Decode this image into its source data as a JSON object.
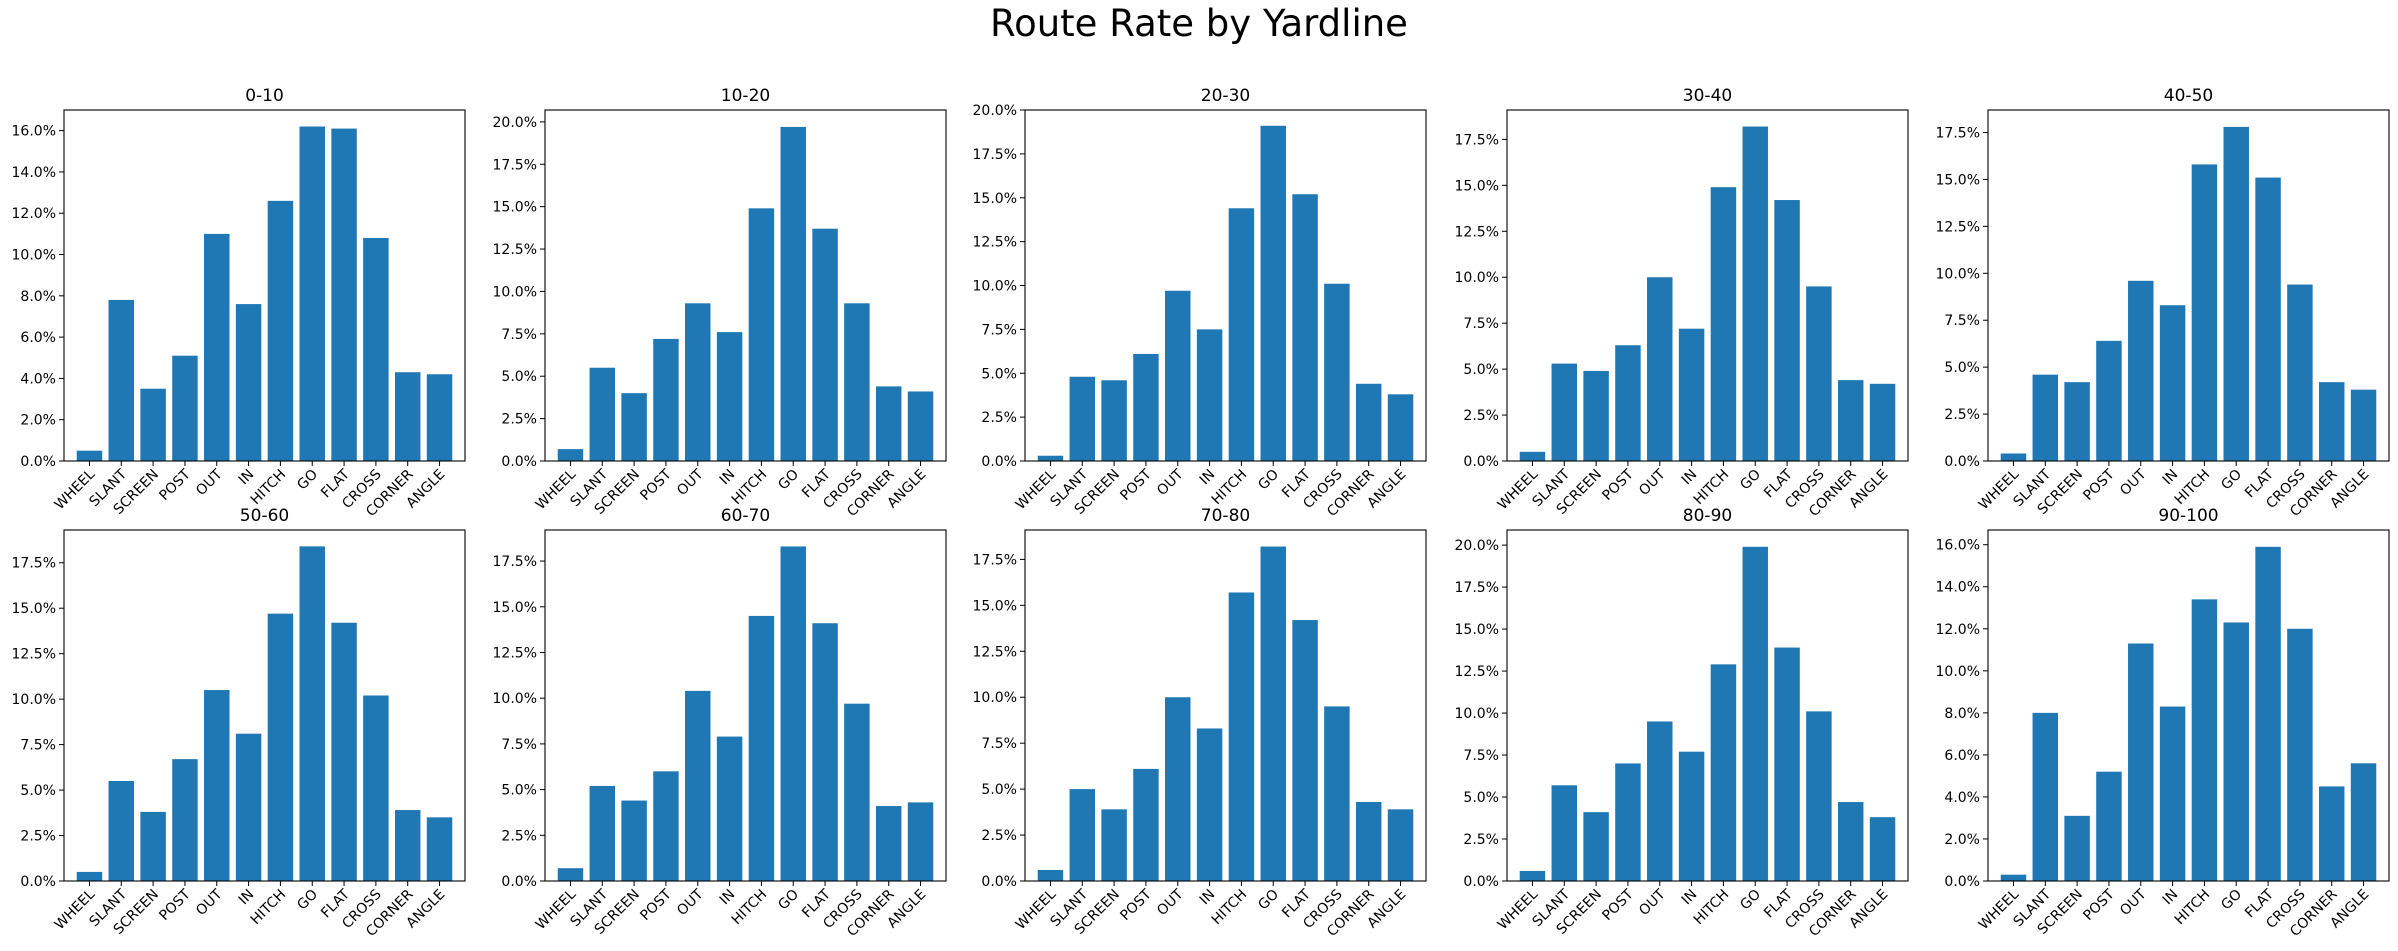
{
  "figure": {
    "title": "Route Rate by Yardline",
    "bar_color": "#1f77b4"
  },
  "chart_data": [
    {
      "type": "bar",
      "title": "0-10",
      "ylim": [
        0,
        0.17
      ],
      "yticks": [
        0,
        0.02,
        0.04,
        0.06,
        0.08,
        0.1,
        0.12,
        0.14,
        0.16
      ],
      "tick_format": "1dp",
      "categories": [
        "WHEEL",
        "SLANT",
        "SCREEN",
        "POST",
        "OUT",
        "IN",
        "HITCH",
        "GO",
        "FLAT",
        "CROSS",
        "CORNER",
        "ANGLE"
      ],
      "values": [
        0.005,
        0.078,
        0.035,
        0.051,
        0.11,
        0.076,
        0.126,
        0.162,
        0.161,
        0.108,
        0.043,
        0.042
      ]
    },
    {
      "type": "bar",
      "title": "10-20",
      "ylim": [
        0,
        0.207
      ],
      "yticks": [
        0,
        0.025,
        0.05,
        0.075,
        0.1,
        0.125,
        0.15,
        0.175,
        0.2
      ],
      "tick_format": "1dp",
      "categories": [
        "WHEEL",
        "SLANT",
        "SCREEN",
        "POST",
        "OUT",
        "IN",
        "HITCH",
        "GO",
        "FLAT",
        "CROSS",
        "CORNER",
        "ANGLE"
      ],
      "values": [
        0.007,
        0.055,
        0.04,
        0.072,
        0.093,
        0.076,
        0.149,
        0.197,
        0.137,
        0.093,
        0.044,
        0.041
      ]
    },
    {
      "type": "bar",
      "title": "20-30",
      "ylim": [
        0,
        0.2
      ],
      "yticks": [
        0,
        0.025,
        0.05,
        0.075,
        0.1,
        0.125,
        0.15,
        0.175,
        0.2
      ],
      "tick_format": "1dp",
      "categories": [
        "WHEEL",
        "SLANT",
        "SCREEN",
        "POST",
        "OUT",
        "IN",
        "HITCH",
        "GO",
        "FLAT",
        "CROSS",
        "CORNER",
        "ANGLE"
      ],
      "values": [
        0.003,
        0.048,
        0.046,
        0.061,
        0.097,
        0.075,
        0.144,
        0.191,
        0.152,
        0.101,
        0.044,
        0.038
      ]
    },
    {
      "type": "bar",
      "title": "30-40",
      "ylim": [
        0,
        0.191
      ],
      "yticks": [
        0,
        0.025,
        0.05,
        0.075,
        0.1,
        0.125,
        0.15,
        0.175
      ],
      "tick_format": "1dp",
      "categories": [
        "WHEEL",
        "SLANT",
        "SCREEN",
        "POST",
        "OUT",
        "IN",
        "HITCH",
        "GO",
        "FLAT",
        "CROSS",
        "CORNER",
        "ANGLE"
      ],
      "values": [
        0.005,
        0.053,
        0.049,
        0.063,
        0.1,
        0.072,
        0.149,
        0.182,
        0.142,
        0.095,
        0.044,
        0.042
      ]
    },
    {
      "type": "bar",
      "title": "40-50",
      "ylim": [
        0,
        0.187
      ],
      "yticks": [
        0,
        0.025,
        0.05,
        0.075,
        0.1,
        0.125,
        0.15,
        0.175
      ],
      "tick_format": "1dp",
      "categories": [
        "WHEEL",
        "SLANT",
        "SCREEN",
        "POST",
        "OUT",
        "IN",
        "HITCH",
        "GO",
        "FLAT",
        "CROSS",
        "CORNER",
        "ANGLE"
      ],
      "values": [
        0.004,
        0.046,
        0.042,
        0.064,
        0.096,
        0.083,
        0.158,
        0.178,
        0.151,
        0.094,
        0.042,
        0.038
      ]
    },
    {
      "type": "bar",
      "title": "50-60",
      "ylim": [
        0,
        0.193
      ],
      "yticks": [
        0,
        0.025,
        0.05,
        0.075,
        0.1,
        0.125,
        0.15,
        0.175
      ],
      "tick_format": "1dp",
      "categories": [
        "WHEEL",
        "SLANT",
        "SCREEN",
        "POST",
        "OUT",
        "IN",
        "HITCH",
        "GO",
        "FLAT",
        "CROSS",
        "CORNER",
        "ANGLE"
      ],
      "values": [
        0.005,
        0.055,
        0.038,
        0.067,
        0.105,
        0.081,
        0.147,
        0.184,
        0.142,
        0.102,
        0.039,
        0.035
      ]
    },
    {
      "type": "bar",
      "title": "60-70",
      "ylim": [
        0,
        0.192
      ],
      "yticks": [
        0,
        0.025,
        0.05,
        0.075,
        0.1,
        0.125,
        0.15,
        0.175
      ],
      "tick_format": "1dp",
      "categories": [
        "WHEEL",
        "SLANT",
        "SCREEN",
        "POST",
        "OUT",
        "IN",
        "HITCH",
        "GO",
        "FLAT",
        "CROSS",
        "CORNER",
        "ANGLE"
      ],
      "values": [
        0.007,
        0.052,
        0.044,
        0.06,
        0.104,
        0.079,
        0.145,
        0.183,
        0.141,
        0.097,
        0.041,
        0.043
      ]
    },
    {
      "type": "bar",
      "title": "70-80",
      "ylim": [
        0,
        0.191
      ],
      "yticks": [
        0,
        0.025,
        0.05,
        0.075,
        0.1,
        0.125,
        0.15,
        0.175
      ],
      "tick_format": "1dp",
      "categories": [
        "WHEEL",
        "SLANT",
        "SCREEN",
        "POST",
        "OUT",
        "IN",
        "HITCH",
        "GO",
        "FLAT",
        "CROSS",
        "CORNER",
        "ANGLE"
      ],
      "values": [
        0.006,
        0.05,
        0.039,
        0.061,
        0.1,
        0.083,
        0.157,
        0.182,
        0.142,
        0.095,
        0.043,
        0.039
      ]
    },
    {
      "type": "bar",
      "title": "80-90",
      "ylim": [
        0,
        0.209
      ],
      "yticks": [
        0,
        0.025,
        0.05,
        0.075,
        0.1,
        0.125,
        0.15,
        0.175,
        0.2
      ],
      "tick_format": "1dp",
      "categories": [
        "WHEEL",
        "SLANT",
        "SCREEN",
        "POST",
        "OUT",
        "IN",
        "HITCH",
        "GO",
        "FLAT",
        "CROSS",
        "CORNER",
        "ANGLE"
      ],
      "values": [
        0.006,
        0.057,
        0.041,
        0.07,
        0.095,
        0.077,
        0.129,
        0.199,
        0.139,
        0.101,
        0.047,
        0.038
      ]
    },
    {
      "type": "bar",
      "title": "90-100",
      "ylim": [
        0,
        0.167
      ],
      "yticks": [
        0,
        0.02,
        0.04,
        0.06,
        0.08,
        0.1,
        0.12,
        0.14,
        0.16
      ],
      "tick_format": "1dp",
      "categories": [
        "WHEEL",
        "SLANT",
        "SCREEN",
        "POST",
        "OUT",
        "IN",
        "HITCH",
        "GO",
        "FLAT",
        "CROSS",
        "CORNER",
        "ANGLE"
      ],
      "values": [
        0.003,
        0.08,
        0.031,
        0.052,
        0.113,
        0.083,
        0.134,
        0.123,
        0.159,
        0.12,
        0.045,
        0.056
      ]
    }
  ]
}
